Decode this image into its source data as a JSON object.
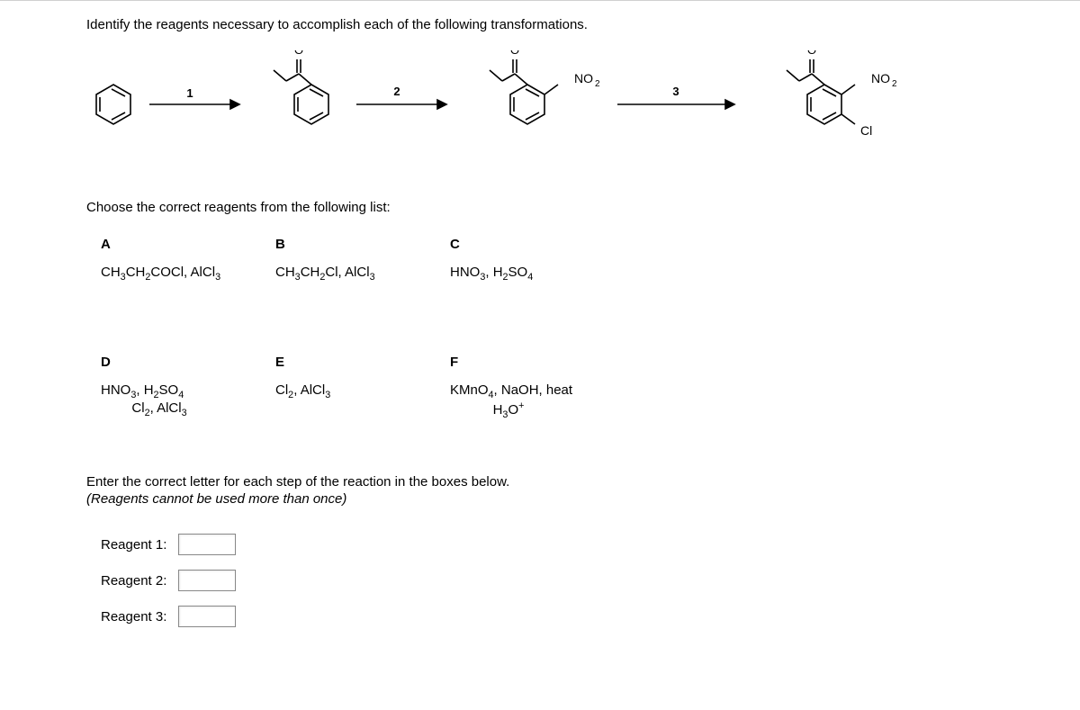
{
  "prompt": "Identify the reagents necessary to accomplish each of the following transformations.",
  "scheme": {
    "arrow_labels": [
      "1",
      "2",
      "3"
    ],
    "sub_labels": {
      "no2": "NO",
      "no2_sub": "2",
      "cl": "Cl",
      "o": "O"
    },
    "colors": {
      "line": "#000000",
      "bg": "#ffffff"
    }
  },
  "choose": "Choose the correct reagents from the following list:",
  "reagents": {
    "A": {
      "label": "A",
      "html": "CH<sub>3</sub>CH<sub>2</sub>COCl, AlCl<sub>3</sub>"
    },
    "B": {
      "label": "B",
      "html": "CH<sub>3</sub>CH<sub>2</sub>Cl, AlCl<sub>3</sub>"
    },
    "C": {
      "label": "C",
      "html": "HNO<sub>3</sub>, H<sub>2</sub>SO<sub>4</sub>"
    },
    "D": {
      "label": "D",
      "html": "HNO<sub>3</sub>, H<sub>2</sub>SO<sub>4</sub><span class=\"line2\">Cl<sub>2</sub>, AlCl<sub>3</sub></span>"
    },
    "E": {
      "label": "E",
      "html": "Cl<sub>2</sub>, AlCl<sub>3</sub>"
    },
    "F": {
      "label": "F",
      "html": "KMnO<sub>4</sub>, NaOH, heat<span class=\"line2\">H<sub>3</sub>O<sup>+</sup></span>"
    }
  },
  "enter": "Enter the correct letter for each step of the reaction in the boxes below.",
  "note": "(Reagents cannot be used more than once)",
  "answers": {
    "r1_label": "Reagent 1:",
    "r2_label": "Reagent 2:",
    "r3_label": "Reagent 3:"
  }
}
